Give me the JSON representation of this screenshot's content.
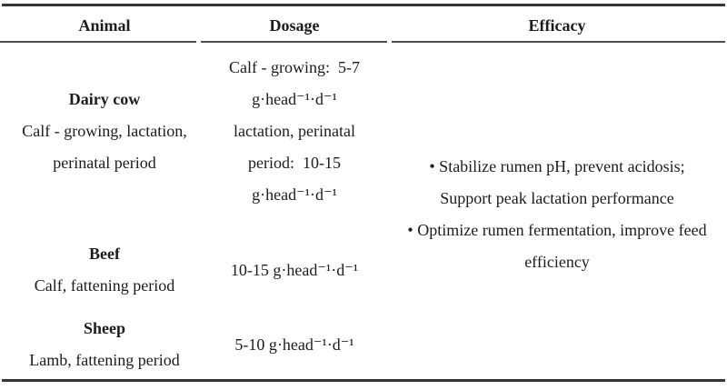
{
  "header": {
    "animal": "Animal",
    "dosage": "Dosage",
    "efficacy": "Efficacy"
  },
  "rows": [
    {
      "name": "Dairy cow",
      "desc_lines": [
        "Calf - growing, lactation,",
        "perinatal period"
      ],
      "dosage_lines": [
        "Calf - growing:  5-7",
        "g·head⁻¹·d⁻¹",
        "lactation, perinatal",
        "period:  10-15",
        "g·head⁻¹·d⁻¹"
      ]
    },
    {
      "name": "Beef",
      "desc_lines": [
        "Calf, fattening period"
      ],
      "dosage_lines": [
        "10-15 g·head⁻¹·d⁻¹"
      ]
    },
    {
      "name": "Sheep",
      "desc_lines": [
        "Lamb, fattening period"
      ],
      "dosage_lines": [
        "5-10 g·head⁻¹·d⁻¹"
      ]
    }
  ],
  "efficacy_lines": [
    "• Stabilize rumen pH, prevent acidosis;",
    "Support peak lactation performance",
    "• Optimize rumen fermentation, improve feed",
    "efficiency"
  ],
  "colors": {
    "background": "#ffffff",
    "text": "#1c1c1c",
    "rule_heavy": "#343434",
    "rule_light": "#4e4e4e"
  }
}
